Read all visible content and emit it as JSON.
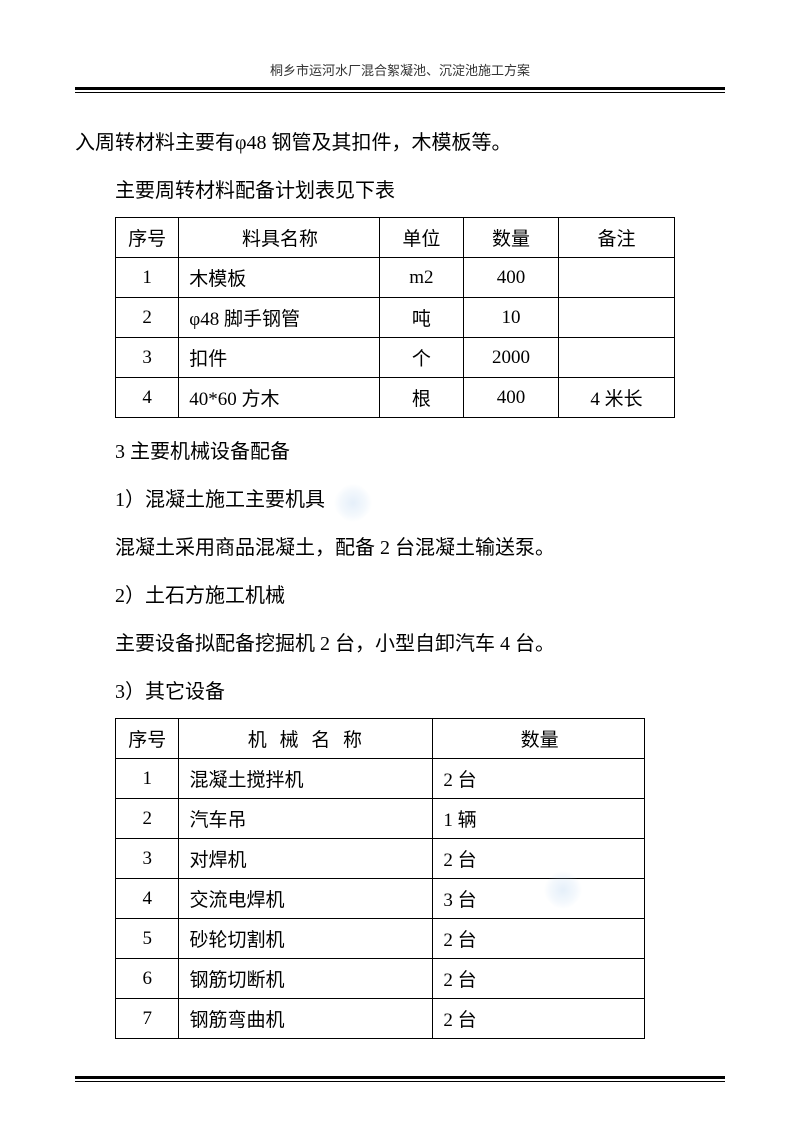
{
  "header": {
    "title": "桐乡市运河水厂混合絮凝池、沉淀池施工方案"
  },
  "para1": "入周转材料主要有φ48 钢管及其扣件，木模板等。",
  "para2": "主要周转材料配备计划表见下表",
  "table1": {
    "headers": {
      "c1": "序号",
      "c2": "料具名称",
      "c3": "单位",
      "c4": "数量",
      "c5": "备注"
    },
    "rows": [
      {
        "c1": "1",
        "c2": "木模板",
        "c3": "m2",
        "c4": "400",
        "c5": ""
      },
      {
        "c1": "2",
        "c2": "φ48 脚手钢管",
        "c3": "吨",
        "c4": "10",
        "c5": ""
      },
      {
        "c1": "3",
        "c2": "扣件",
        "c3": "个",
        "c4": "2000",
        "c5": ""
      },
      {
        "c1": "4",
        "c2": "40*60 方木",
        "c3": "根",
        "c4": "400",
        "c5": "4 米长"
      }
    ]
  },
  "para3": "3 主要机械设备配备",
  "para4": "1）混凝土施工主要机具",
  "para5": "混凝土采用商品混凝土，配备 2 台混凝土输送泵。",
  "para6": "2）土石方施工机械",
  "para7": "主要设备拟配备挖掘机 2 台，小型自卸汽车 4 台。",
  "para8": "3）其它设备",
  "table2": {
    "headers": {
      "c1": "序号",
      "c2": "机 械 名 称",
      "c3": "数量"
    },
    "rows": [
      {
        "c1": "1",
        "c2": "混凝土搅拌机",
        "c3": "2 台"
      },
      {
        "c1": "2",
        "c2": "汽车吊",
        "c3": "1 辆"
      },
      {
        "c1": "3",
        "c2": "对焊机",
        "c3": "2 台"
      },
      {
        "c1": "4",
        "c2": "交流电焊机",
        "c3": "3 台"
      },
      {
        "c1": "5",
        "c2": "砂轮切割机",
        "c3": "2 台"
      },
      {
        "c1": "6",
        "c2": "钢筋切断机",
        "c3": "2 台"
      },
      {
        "c1": "7",
        "c2": "钢筋弯曲机",
        "c3": "2 台"
      }
    ]
  }
}
